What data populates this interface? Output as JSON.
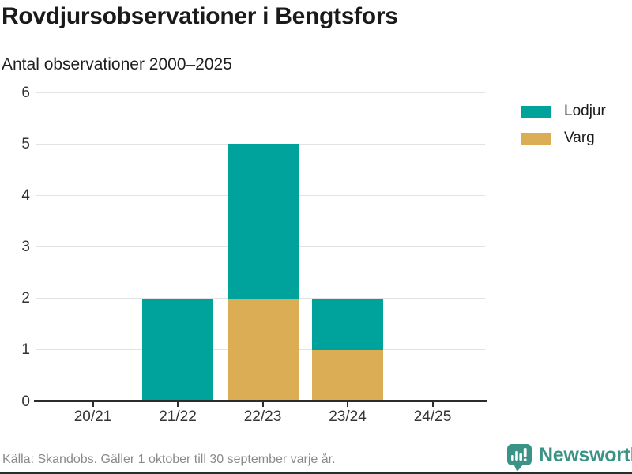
{
  "title": "Rovdjursobservationer i Bengtsfors",
  "subtitle": "Antal observationer 2000–2025",
  "footer": {
    "source": "Källa: Skandobs. Gäller 1 oktober till 30 september varje år."
  },
  "branding": {
    "name": "Newsworthy",
    "color": "#3b9286"
  },
  "colors": {
    "lodjur": "#00a39b",
    "varg": "#dbae55",
    "grid": "#e2e2e2",
    "axis": "#2d2d2d",
    "tick_text": "#333333",
    "title_text": "#1a1a1a",
    "muted_text": "#8a8a8a"
  },
  "legend": {
    "items": [
      {
        "label": "Lodjur",
        "color": "#00a39b"
      },
      {
        "label": "Varg",
        "color": "#dbae55"
      }
    ]
  },
  "chart_data": {
    "type": "bar",
    "stacked": true,
    "title": "Rovdjursobservationer i Bengtsfors",
    "subtitle": "Antal observationer 2000–2025",
    "categories": [
      "20/21",
      "21/22",
      "22/23",
      "23/24",
      "24/25"
    ],
    "series": [
      {
        "name": "Lodjur",
        "color": "#00a39b",
        "values": [
          0,
          2,
          3,
          1,
          0
        ]
      },
      {
        "name": "Varg",
        "color": "#dbae55",
        "values": [
          0,
          0,
          2,
          1,
          0
        ]
      }
    ],
    "stack_order_bottom_to_top": [
      "Varg",
      "Lodjur"
    ],
    "totals": [
      0,
      2,
      5,
      2,
      0
    ],
    "xlabel": "",
    "ylabel": "",
    "ylim": [
      0,
      6
    ],
    "yticks": [
      0,
      1,
      2,
      3,
      4,
      5,
      6
    ],
    "grid": true,
    "legend_position": "right"
  }
}
